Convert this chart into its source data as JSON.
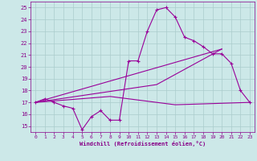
{
  "background_color": "#cce8e8",
  "grid_color": "#aacccc",
  "line_color": "#990099",
  "marker_color": "#990099",
  "xlabel": "Windchill (Refroidissement éolien,°C)",
  "xlabel_color": "#880088",
  "tick_color": "#880088",
  "ylim": [
    14.5,
    25.5
  ],
  "xlim": [
    -0.5,
    23.5
  ],
  "yticks": [
    15,
    16,
    17,
    18,
    19,
    20,
    21,
    22,
    23,
    24,
    25
  ],
  "xticks": [
    0,
    1,
    2,
    3,
    4,
    5,
    6,
    7,
    8,
    9,
    10,
    11,
    12,
    13,
    14,
    15,
    16,
    17,
    18,
    19,
    20,
    21,
    22,
    23
  ],
  "curve1_x": [
    0,
    1,
    2,
    3,
    4,
    5,
    6,
    7,
    8,
    9,
    10,
    11,
    12,
    13,
    14,
    15,
    16,
    17,
    18,
    19,
    20,
    21,
    22,
    23
  ],
  "curve1_y": [
    17.0,
    17.3,
    17.0,
    16.7,
    16.5,
    14.7,
    15.8,
    16.3,
    15.5,
    15.5,
    20.5,
    20.5,
    23.0,
    24.8,
    25.0,
    24.2,
    22.5,
    22.2,
    21.7,
    21.1,
    21.1,
    20.3,
    18.0,
    17.0
  ],
  "curve2_x": [
    0,
    20
  ],
  "curve2_y": [
    17.0,
    21.5
  ],
  "curve3_x": [
    0,
    8,
    15,
    23
  ],
  "curve3_y": [
    17.0,
    17.5,
    16.8,
    17.0
  ],
  "curve4_x": [
    0,
    13,
    20
  ],
  "curve4_y": [
    17.0,
    18.5,
    21.5
  ]
}
